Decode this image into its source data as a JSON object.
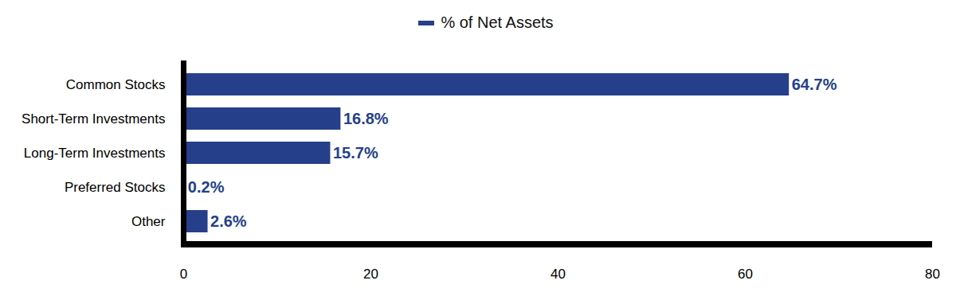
{
  "chart_data": {
    "type": "bar",
    "orientation": "horizontal",
    "categories": [
      "Common Stocks",
      "Short-Term Investments",
      "Long-Term Investments",
      "Preferred Stocks",
      "Other"
    ],
    "series": [
      {
        "name": "% of Net Assets",
        "color": "#253f8a",
        "values": [
          64.7,
          16.8,
          15.7,
          0.2,
          2.6
        ],
        "value_labels": [
          "64.7%",
          "16.8%",
          "15.7%",
          "0.2%",
          "2.6%"
        ]
      }
    ],
    "xlim": [
      0,
      80
    ],
    "xticks": [
      0,
      20,
      40,
      60,
      80
    ],
    "grid": false,
    "legend": "top",
    "data_labels": true
  }
}
